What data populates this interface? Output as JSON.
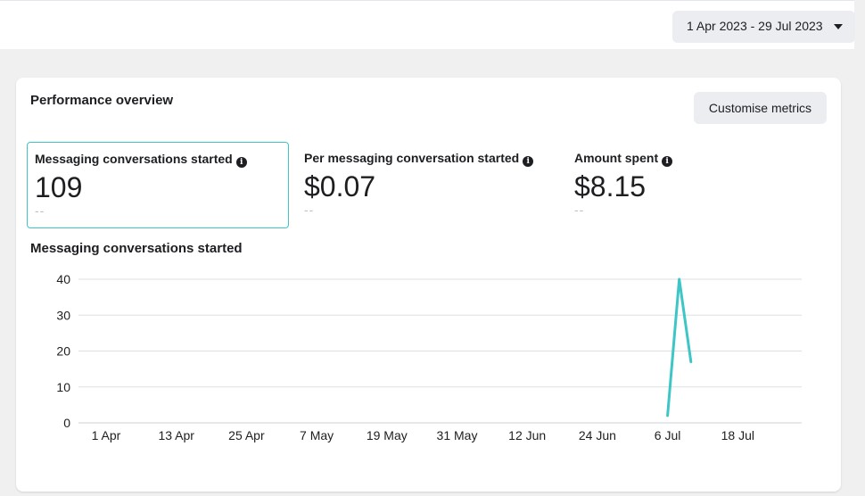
{
  "header": {
    "date_range": "1 Apr 2023 - 29 Jul 2023"
  },
  "card": {
    "title": "Performance overview",
    "customise_label": "Customise metrics"
  },
  "metrics": [
    {
      "label": "Messaging conversations started",
      "value": "109",
      "compare": "--"
    },
    {
      "label": "Per messaging conversation started",
      "value": "$0.07",
      "compare": "--"
    },
    {
      "label": "Amount spent",
      "value": "$8.15",
      "compare": "--"
    }
  ],
  "icons": {
    "info": "info-icon",
    "dropdown": "chevron-down-icon"
  },
  "colors": {
    "accent": "#3ec6c6",
    "line": "#3ec6c6",
    "grid": "#dddfe2"
  },
  "chart_data": {
    "type": "line",
    "title": "Messaging conversations started",
    "x_ticks": [
      "1 Apr",
      "13 Apr",
      "25 Apr",
      "7 May",
      "19 May",
      "31 May",
      "12 Jun",
      "24 Jun",
      "6 Jul",
      "18 Jul"
    ],
    "y_ticks": [
      0,
      10,
      20,
      30,
      40
    ],
    "ylim": [
      0,
      40
    ],
    "xlim": [
      "2023-04-01",
      "2023-07-29"
    ],
    "grid": true,
    "series": [
      {
        "x": [
          "2023-07-06",
          "2023-07-08",
          "2023-07-10"
        ],
        "y": [
          2,
          40,
          17
        ]
      }
    ]
  }
}
